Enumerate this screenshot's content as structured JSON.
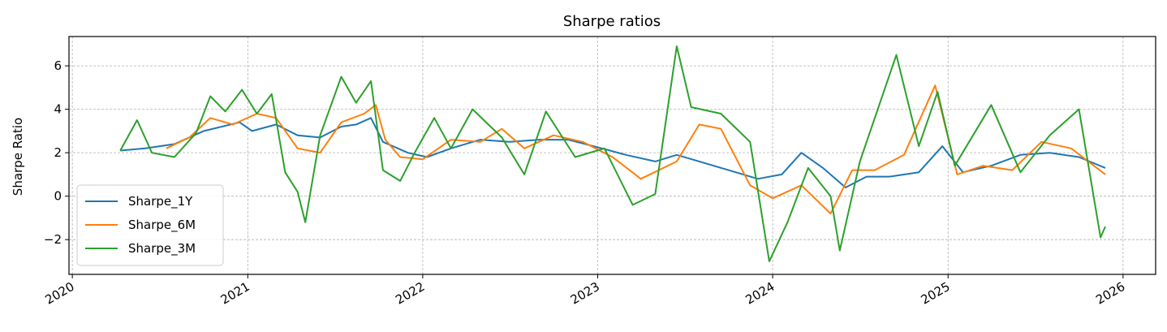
{
  "chart_data": {
    "type": "line",
    "title": "Sharpe ratios",
    "xlabel": "",
    "ylabel": "Sharpe Ratio",
    "x_axis": "date",
    "xlim": [
      "2019-12-25",
      "2026-03-10"
    ],
    "ylim": [
      -3.6,
      7.35
    ],
    "x_ticks": [
      "2020-01-01",
      "2021-01-01",
      "2022-01-01",
      "2023-01-01",
      "2024-01-01",
      "2025-01-01",
      "2026-01-01"
    ],
    "x_tick_labels": [
      "2020",
      "2021",
      "2022",
      "2023",
      "2024",
      "2025",
      "2026"
    ],
    "y_ticks": [
      -2,
      0,
      2,
      4,
      6
    ],
    "y_tick_labels": [
      "−2",
      "0",
      "2",
      "4",
      "6"
    ],
    "grid": true,
    "legend_position": "lower-left",
    "series": [
      {
        "name": "Sharpe_1Y",
        "color": "#1f77b4",
        "points": [
          [
            "2020-04-10",
            2.1
          ],
          [
            "2020-06-01",
            2.2
          ],
          [
            "2020-08-01",
            2.4
          ],
          [
            "2020-10-01",
            3.0
          ],
          [
            "2020-12-15",
            3.4
          ],
          [
            "2021-01-10",
            3.0
          ],
          [
            "2021-03-01",
            3.3
          ],
          [
            "2021-04-15",
            2.8
          ],
          [
            "2021-06-01",
            2.7
          ],
          [
            "2021-07-15",
            3.2
          ],
          [
            "2021-08-15",
            3.3
          ],
          [
            "2021-09-15",
            3.6
          ],
          [
            "2021-10-10",
            2.5
          ],
          [
            "2021-12-01",
            2.0
          ],
          [
            "2022-01-10",
            1.8
          ],
          [
            "2022-03-01",
            2.2
          ],
          [
            "2022-05-01",
            2.6
          ],
          [
            "2022-07-01",
            2.5
          ],
          [
            "2022-09-01",
            2.6
          ],
          [
            "2022-11-01",
            2.6
          ],
          [
            "2023-01-10",
            2.2
          ],
          [
            "2023-03-01",
            1.9
          ],
          [
            "2023-05-01",
            1.6
          ],
          [
            "2023-06-15",
            1.9
          ],
          [
            "2023-08-01",
            1.6
          ],
          [
            "2023-10-01",
            1.2
          ],
          [
            "2023-12-01",
            0.8
          ],
          [
            "2024-01-20",
            1.0
          ],
          [
            "2024-03-01",
            2.0
          ],
          [
            "2024-04-15",
            1.3
          ],
          [
            "2024-06-01",
            0.4
          ],
          [
            "2024-07-15",
            0.9
          ],
          [
            "2024-09-01",
            0.9
          ],
          [
            "2024-11-01",
            1.1
          ],
          [
            "2024-12-20",
            2.3
          ],
          [
            "2025-02-01",
            1.1
          ],
          [
            "2025-04-01",
            1.4
          ],
          [
            "2025-06-01",
            1.9
          ],
          [
            "2025-08-01",
            2.0
          ],
          [
            "2025-10-01",
            1.8
          ],
          [
            "2025-11-25",
            1.3
          ]
        ]
      },
      {
        "name": "Sharpe_6M",
        "color": "#ff7f0e",
        "points": [
          [
            "2020-07-15",
            2.2
          ],
          [
            "2020-09-01",
            2.7
          ],
          [
            "2020-10-15",
            3.6
          ],
          [
            "2020-12-01",
            3.3
          ],
          [
            "2021-01-20",
            3.8
          ],
          [
            "2021-03-01",
            3.6
          ],
          [
            "2021-04-15",
            2.2
          ],
          [
            "2021-06-01",
            2.0
          ],
          [
            "2021-07-15",
            3.4
          ],
          [
            "2021-09-01",
            3.8
          ],
          [
            "2021-09-25",
            4.2
          ],
          [
            "2021-10-15",
            2.6
          ],
          [
            "2021-11-15",
            1.8
          ],
          [
            "2022-01-01",
            1.7
          ],
          [
            "2022-03-01",
            2.6
          ],
          [
            "2022-05-01",
            2.5
          ],
          [
            "2022-06-15",
            3.1
          ],
          [
            "2022-08-01",
            2.2
          ],
          [
            "2022-10-01",
            2.8
          ],
          [
            "2022-12-01",
            2.5
          ],
          [
            "2023-02-01",
            1.8
          ],
          [
            "2023-04-01",
            0.8
          ],
          [
            "2023-06-15",
            1.6
          ],
          [
            "2023-08-01",
            3.3
          ],
          [
            "2023-09-15",
            3.1
          ],
          [
            "2023-11-15",
            0.5
          ],
          [
            "2024-01-01",
            -0.1
          ],
          [
            "2024-03-01",
            0.5
          ],
          [
            "2024-05-01",
            -0.8
          ],
          [
            "2024-06-15",
            1.2
          ],
          [
            "2024-08-01",
            1.2
          ],
          [
            "2024-10-01",
            1.9
          ],
          [
            "2024-12-05",
            5.1
          ],
          [
            "2025-01-20",
            1.0
          ],
          [
            "2025-03-15",
            1.4
          ],
          [
            "2025-05-15",
            1.2
          ],
          [
            "2025-07-15",
            2.5
          ],
          [
            "2025-09-15",
            2.2
          ],
          [
            "2025-11-25",
            1.0
          ]
        ]
      },
      {
        "name": "Sharpe_3M",
        "color": "#2ca02c",
        "points": [
          [
            "2020-04-10",
            2.1
          ],
          [
            "2020-05-15",
            3.5
          ],
          [
            "2020-06-15",
            2.0
          ],
          [
            "2020-08-01",
            1.8
          ],
          [
            "2020-09-15",
            2.9
          ],
          [
            "2020-10-15",
            4.6
          ],
          [
            "2020-11-15",
            3.9
          ],
          [
            "2020-12-20",
            4.9
          ],
          [
            "2021-01-20",
            3.8
          ],
          [
            "2021-02-20",
            4.7
          ],
          [
            "2021-03-20",
            1.1
          ],
          [
            "2021-04-15",
            0.2
          ],
          [
            "2021-05-01",
            -1.2
          ],
          [
            "2021-06-01",
            2.8
          ],
          [
            "2021-07-15",
            5.5
          ],
          [
            "2021-08-15",
            4.3
          ],
          [
            "2021-09-15",
            5.3
          ],
          [
            "2021-10-10",
            1.2
          ],
          [
            "2021-11-15",
            0.7
          ],
          [
            "2021-12-15",
            2.0
          ],
          [
            "2022-01-25",
            3.6
          ],
          [
            "2022-03-01",
            2.2
          ],
          [
            "2022-04-15",
            4.0
          ],
          [
            "2022-06-15",
            2.7
          ],
          [
            "2022-08-01",
            1.0
          ],
          [
            "2022-09-15",
            3.9
          ],
          [
            "2022-11-15",
            1.8
          ],
          [
            "2023-01-15",
            2.2
          ],
          [
            "2023-03-15",
            -0.4
          ],
          [
            "2023-05-01",
            0.1
          ],
          [
            "2023-06-15",
            6.9
          ],
          [
            "2023-07-15",
            4.1
          ],
          [
            "2023-09-15",
            3.8
          ],
          [
            "2023-11-15",
            2.5
          ],
          [
            "2023-12-25",
            -3.0
          ],
          [
            "2024-02-01",
            -1.2
          ],
          [
            "2024-03-15",
            1.3
          ],
          [
            "2024-05-01",
            0.0
          ],
          [
            "2024-05-20",
            -2.5
          ],
          [
            "2024-07-01",
            1.6
          ],
          [
            "2024-09-15",
            6.5
          ],
          [
            "2024-11-01",
            2.3
          ],
          [
            "2024-12-10",
            4.8
          ],
          [
            "2025-01-15",
            1.4
          ],
          [
            "2025-04-01",
            4.2
          ],
          [
            "2025-06-01",
            1.1
          ],
          [
            "2025-08-01",
            2.8
          ],
          [
            "2025-10-01",
            4.0
          ],
          [
            "2025-11-15",
            -1.9
          ],
          [
            "2025-11-25",
            -1.4
          ]
        ]
      }
    ]
  }
}
